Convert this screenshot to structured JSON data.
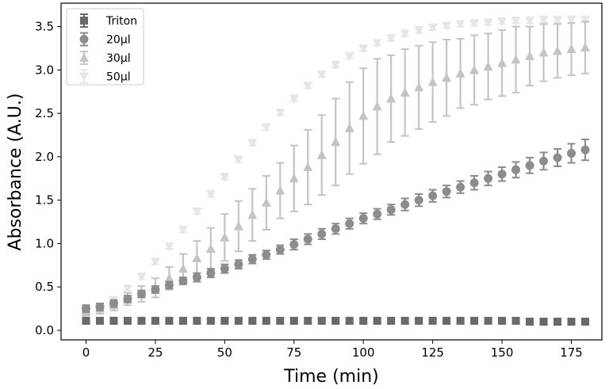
{
  "chart_data": {
    "type": "scatter",
    "title": "",
    "xlabel": "Time (min)",
    "ylabel": "Absorbance (A.U.)",
    "xlim": [
      -9,
      186
    ],
    "ylim": [
      -0.11,
      3.77
    ],
    "xticks": [
      0,
      25,
      50,
      75,
      100,
      125,
      150,
      175
    ],
    "yticks": [
      0.0,
      0.5,
      1.0,
      1.5,
      2.0,
      2.5,
      3.0,
      3.5
    ],
    "ytick_labels": [
      "0.0",
      "0.5",
      "1.0",
      "1.5",
      "2.0",
      "2.5",
      "3.0",
      "3.5"
    ],
    "grid": false,
    "legend_position": "top-left",
    "x": [
      0,
      5,
      10,
      15,
      20,
      25,
      30,
      35,
      40,
      45,
      50,
      55,
      60,
      65,
      70,
      75,
      80,
      85,
      90,
      95,
      100,
      105,
      110,
      115,
      120,
      125,
      130,
      135,
      140,
      145,
      150,
      155,
      160,
      165,
      170,
      175,
      180
    ],
    "series": [
      {
        "name": "Triton",
        "marker": "square",
        "color": "#696969",
        "values": [
          0.11,
          0.11,
          0.11,
          0.11,
          0.11,
          0.11,
          0.11,
          0.11,
          0.11,
          0.11,
          0.11,
          0.11,
          0.11,
          0.11,
          0.11,
          0.11,
          0.11,
          0.11,
          0.11,
          0.11,
          0.11,
          0.11,
          0.11,
          0.11,
          0.11,
          0.11,
          0.11,
          0.11,
          0.11,
          0.11,
          0.11,
          0.11,
          0.1,
          0.1,
          0.1,
          0.1,
          0.1
        ],
        "errors": [
          0.03,
          0.03,
          0.03,
          0.03,
          0.03,
          0.03,
          0.03,
          0.03,
          0.03,
          0.03,
          0.03,
          0.03,
          0.03,
          0.03,
          0.03,
          0.03,
          0.03,
          0.03,
          0.03,
          0.03,
          0.03,
          0.03,
          0.03,
          0.03,
          0.03,
          0.03,
          0.03,
          0.03,
          0.03,
          0.03,
          0.03,
          0.03,
          0.03,
          0.03,
          0.03,
          0.03,
          0.03
        ]
      },
      {
        "name": "20µl",
        "marker": "circle",
        "color": "#8c8c8c",
        "values": [
          0.25,
          0.27,
          0.31,
          0.36,
          0.42,
          0.47,
          0.52,
          0.57,
          0.61,
          0.66,
          0.71,
          0.76,
          0.82,
          0.87,
          0.93,
          0.99,
          1.05,
          1.11,
          1.17,
          1.23,
          1.29,
          1.34,
          1.39,
          1.45,
          1.5,
          1.55,
          1.6,
          1.65,
          1.7,
          1.75,
          1.8,
          1.85,
          1.9,
          1.95,
          1.99,
          2.04,
          2.08
        ],
        "errors": [
          0.04,
          0.04,
          0.04,
          0.04,
          0.04,
          0.04,
          0.04,
          0.04,
          0.05,
          0.05,
          0.05,
          0.05,
          0.05,
          0.05,
          0.05,
          0.06,
          0.06,
          0.06,
          0.06,
          0.06,
          0.06,
          0.06,
          0.06,
          0.07,
          0.07,
          0.07,
          0.07,
          0.07,
          0.08,
          0.08,
          0.08,
          0.09,
          0.09,
          0.1,
          0.1,
          0.11,
          0.12
        ]
      },
      {
        "name": "30µl",
        "marker": "triangle-up",
        "color": "#c4c4c4",
        "values": [
          0.22,
          0.25,
          0.29,
          0.36,
          0.42,
          0.49,
          0.6,
          0.71,
          0.83,
          0.94,
          1.07,
          1.2,
          1.33,
          1.47,
          1.61,
          1.75,
          1.88,
          2.02,
          2.17,
          2.33,
          2.47,
          2.58,
          2.67,
          2.74,
          2.8,
          2.86,
          2.91,
          2.96,
          3.0,
          3.04,
          3.08,
          3.12,
          3.16,
          3.2,
          3.22,
          3.24,
          3.26
        ],
        "errors": [
          0.05,
          0.06,
          0.06,
          0.07,
          0.09,
          0.11,
          0.13,
          0.17,
          0.2,
          0.24,
          0.27,
          0.29,
          0.3,
          0.31,
          0.32,
          0.38,
          0.43,
          0.46,
          0.5,
          0.53,
          0.55,
          0.55,
          0.5,
          0.5,
          0.48,
          0.46,
          0.44,
          0.4,
          0.4,
          0.38,
          0.38,
          0.38,
          0.34,
          0.33,
          0.31,
          0.3,
          0.3
        ]
      },
      {
        "name": "50µl",
        "marker": "triangle-down",
        "color": "#e6e6e6",
        "values": [
          0.2,
          0.25,
          0.35,
          0.48,
          0.62,
          0.79,
          0.97,
          1.16,
          1.37,
          1.57,
          1.77,
          1.97,
          2.16,
          2.34,
          2.51,
          2.67,
          2.82,
          2.95,
          3.06,
          3.16,
          3.25,
          3.31,
          3.37,
          3.42,
          3.46,
          3.49,
          3.51,
          3.53,
          3.54,
          3.55,
          3.56,
          3.57,
          3.57,
          3.58,
          3.58,
          3.58,
          3.58
        ],
        "errors": [
          0.03,
          0.03,
          0.03,
          0.03,
          0.03,
          0.03,
          0.03,
          0.03,
          0.03,
          0.03,
          0.03,
          0.03,
          0.03,
          0.03,
          0.03,
          0.03,
          0.03,
          0.03,
          0.03,
          0.03,
          0.03,
          0.03,
          0.03,
          0.03,
          0.03,
          0.03,
          0.03,
          0.03,
          0.03,
          0.03,
          0.03,
          0.03,
          0.03,
          0.03,
          0.03,
          0.03,
          0.03
        ]
      }
    ]
  }
}
